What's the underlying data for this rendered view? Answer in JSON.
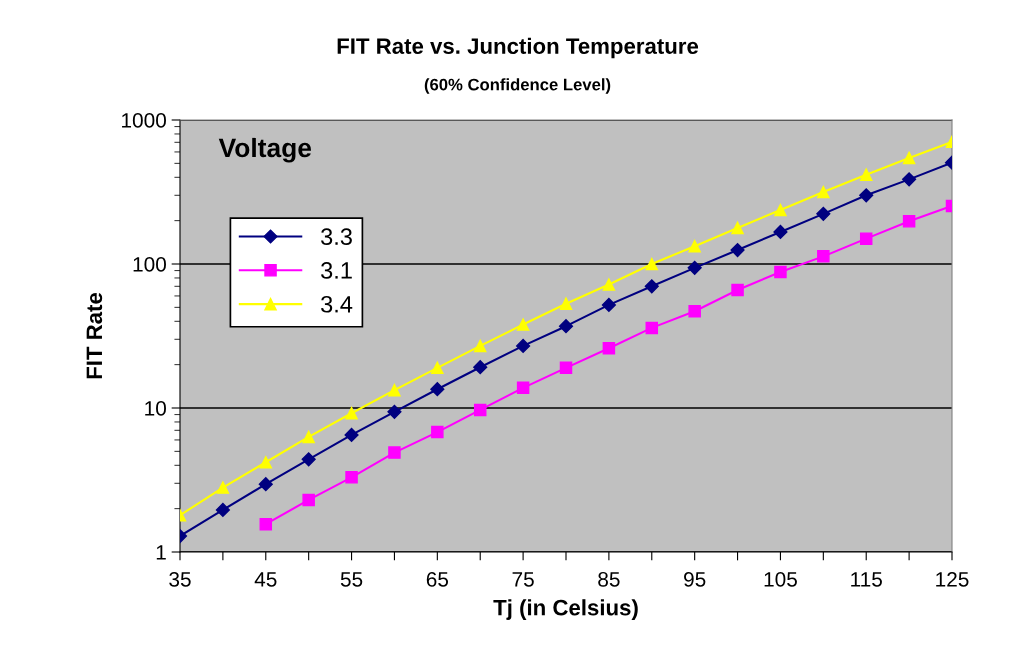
{
  "chart_data": {
    "type": "line",
    "title": "FIT Rate vs. Junction Temperature",
    "subtitle": "(60% Confidence Level)",
    "xlabel": "Tj (in Celsius)",
    "ylabel": "FIT Rate",
    "legend_title": "Voltage",
    "x": [
      35,
      40,
      45,
      50,
      55,
      60,
      65,
      70,
      75,
      80,
      85,
      90,
      95,
      100,
      105,
      110,
      115,
      120,
      125
    ],
    "series": [
      {
        "name": "3.3",
        "color": "#000080",
        "marker": "diamond",
        "values": [
          1.29,
          1.96,
          2.96,
          4.4,
          6.5,
          9.4,
          13.5,
          19.2,
          27,
          37,
          52,
          70,
          94,
          125,
          167,
          223,
          300,
          387,
          505
        ]
      },
      {
        "name": "3.1",
        "color": "#ff00ff",
        "marker": "square",
        "values": [
          null,
          null,
          1.56,
          2.3,
          3.3,
          4.9,
          6.8,
          9.7,
          13.8,
          19,
          26,
          36,
          47,
          66,
          88,
          113,
          150,
          198,
          253
        ]
      },
      {
        "name": "3.4",
        "color": "#ffff00",
        "marker": "triangle",
        "values": [
          1.8,
          2.8,
          4.2,
          6.3,
          9.2,
          13.3,
          19,
          27,
          38,
          53,
          72,
          100,
          133,
          178,
          237,
          316,
          417,
          545,
          705
        ]
      }
    ],
    "log": "y",
    "xlim": [
      35,
      125
    ],
    "ylim": [
      1,
      1000
    ],
    "xticks": [
      35,
      {
        "value": 40,
        "label": null
      },
      45,
      {
        "value": 50,
        "label": null
      },
      55,
      {
        "value": 60,
        "label": null
      },
      65,
      {
        "value": 70,
        "label": null
      },
      75,
      {
        "value": 80,
        "label": null
      },
      85,
      {
        "value": 90,
        "label": null
      },
      95,
      {
        "value": 100,
        "label": null
      },
      105,
      {
        "value": 110,
        "label": null
      },
      115,
      {
        "value": 120,
        "label": null
      },
      125
    ],
    "yticks": [
      1,
      10,
      100,
      1000
    ],
    "grid": "y",
    "legend": "top left",
    "line_style": "solid"
  }
}
